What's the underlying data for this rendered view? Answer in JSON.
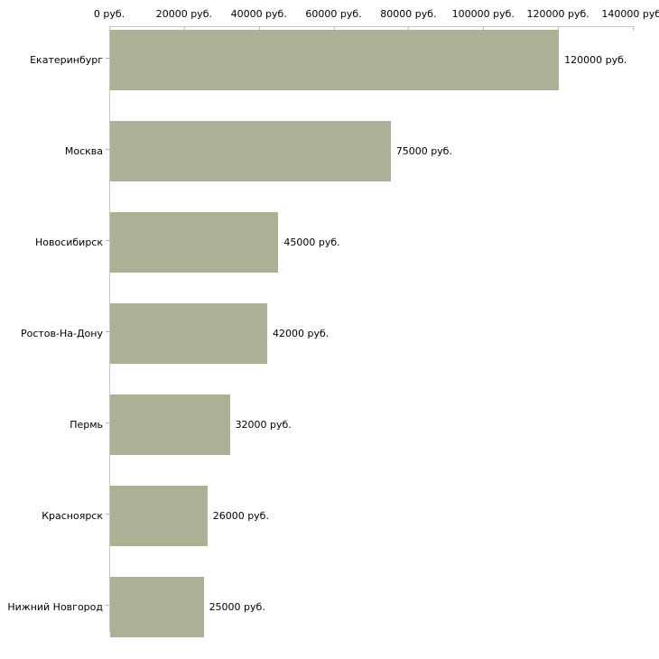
{
  "chart_data": {
    "type": "bar",
    "orientation": "horizontal",
    "title": "",
    "categories": [
      "Екатеринбург",
      "Москва",
      "Новосибирск",
      "Ростов-На-Дону",
      "Пермь",
      "Красноярск",
      "Нижний Новгород"
    ],
    "values": [
      120000,
      75000,
      45000,
      42000,
      32000,
      26000,
      25000
    ],
    "bar_labels": [
      "120000 руб.",
      "75000 руб.",
      "45000 руб.",
      "42000 руб.",
      "32000 руб.",
      "26000 руб.",
      "25000 руб."
    ],
    "unit": "руб.",
    "x_axis": {
      "position": "top",
      "min": 0,
      "max": 140000,
      "tick_values": [
        0,
        20000,
        40000,
        60000,
        80000,
        100000,
        120000,
        140000
      ],
      "tick_labels": [
        "0 руб.",
        "20000 руб.",
        "40000 руб.",
        "60000 руб.",
        "80000 руб.",
        "100000 руб.",
        "120000 руб.",
        "140000 руб."
      ]
    },
    "grid": false,
    "legend": false,
    "colors": {
      "bar": "#ACB196",
      "axis_line": "#C6C6C6",
      "x_tick_mark": "#C2C2A0",
      "y_tick_mark": "#B3B3A4",
      "text": "#000000",
      "background": "#FFFFFF"
    }
  }
}
